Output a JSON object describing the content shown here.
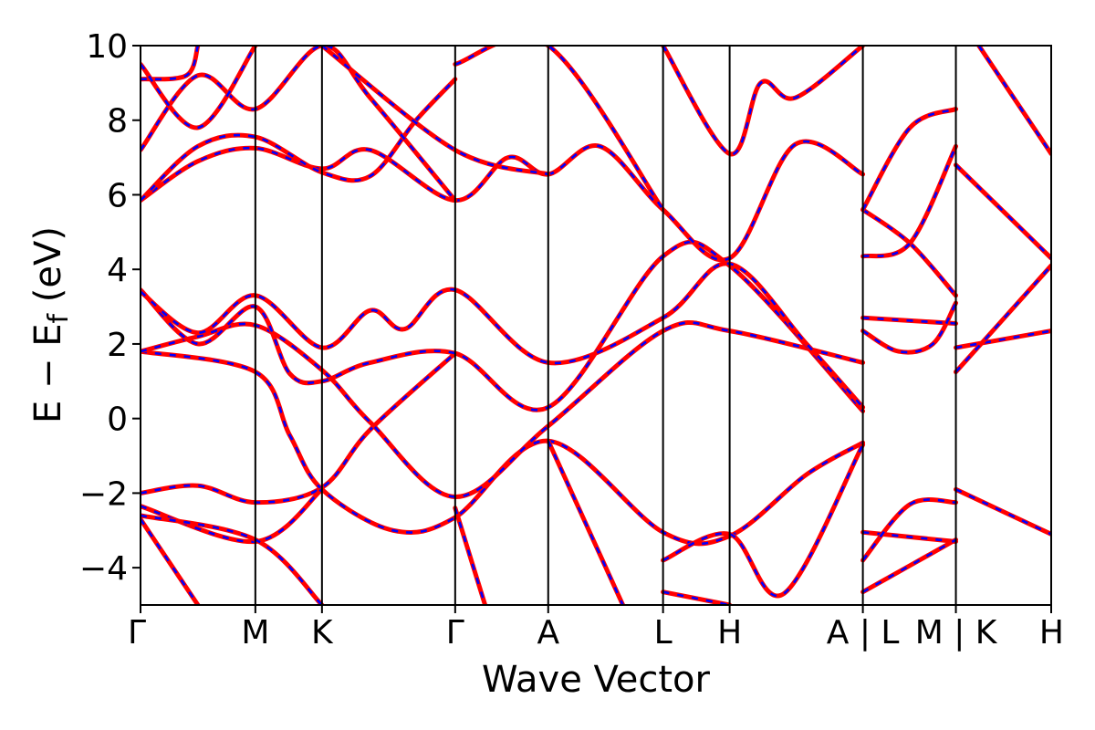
{
  "chart_data": {
    "type": "line",
    "xlabel": "Wave Vector",
    "ylabel_main": "E − E",
    "ylabel_sub": "f",
    "ylabel_unit": " (eV)",
    "ylim": [
      -5,
      10
    ],
    "yticks": [
      -4,
      -2,
      0,
      2,
      4,
      6,
      8,
      10
    ],
    "ytick_labels": [
      "−4",
      "−2",
      "0",
      "2",
      "4",
      "6",
      "8",
      "10"
    ],
    "xlim": [
      0,
      7.93
    ],
    "xticks": [
      {
        "x": 0.0,
        "label": "Γ"
      },
      {
        "x": 1.0,
        "label": "M"
      },
      {
        "x": 1.58,
        "label": "K"
      },
      {
        "x": 2.74,
        "label": "Γ"
      },
      {
        "x": 3.55,
        "label": "A"
      },
      {
        "x": 4.55,
        "label": "L"
      },
      {
        "x": 5.13,
        "label": "H"
      },
      {
        "x": 6.29,
        "label": "A | L"
      },
      {
        "x": 7.1,
        "label": "M | K"
      },
      {
        "x": 7.93,
        "label": "H"
      }
    ],
    "series": [
      {
        "style": "red-solid-blue-dashed",
        "values": [
          [
            0,
            -2.0
          ],
          [
            0.5,
            -1.8
          ],
          [
            1.0,
            -2.25
          ],
          [
            1.58,
            -1.85
          ],
          [
            2.0,
            -0.3
          ],
          [
            2.74,
            1.75
          ]
        ]
      },
      {
        "style": "red-solid-blue-dashed",
        "values": [
          [
            0,
            1.8
          ],
          [
            1.0,
            1.25
          ],
          [
            1.3,
            -0.45
          ],
          [
            1.58,
            -1.9
          ],
          [
            2.2,
            -3.0
          ],
          [
            2.74,
            -2.65
          ],
          [
            3.55,
            -0.6
          ],
          [
            4.55,
            -3.05
          ],
          [
            5.13,
            -3.15
          ],
          [
            5.8,
            -1.5
          ],
          [
            6.29,
            -0.65
          ]
        ]
      },
      {
        "style": "red-solid-blue-dashed",
        "values": [
          [
            0,
            1.8
          ],
          [
            0.5,
            2.2
          ],
          [
            1.0,
            2.5
          ],
          [
            1.58,
            1.3
          ],
          [
            2.0,
            -0.1
          ],
          [
            2.74,
            -2.1
          ],
          [
            3.55,
            -0.2
          ],
          [
            4.55,
            2.35
          ],
          [
            5.13,
            2.35
          ],
          [
            6.29,
            1.5
          ]
        ]
      },
      {
        "style": "red-solid-blue-dashed",
        "values": [
          [
            0,
            3.45
          ],
          [
            0.5,
            2.0
          ],
          [
            1.0,
            3.0
          ],
          [
            1.3,
            1.2
          ],
          [
            1.58,
            1.0
          ],
          [
            2.0,
            1.5
          ],
          [
            2.74,
            1.75
          ],
          [
            3.55,
            0.3
          ],
          [
            4.55,
            4.35
          ],
          [
            5.13,
            4.1
          ],
          [
            6.29,
            0.2
          ]
        ]
      },
      {
        "style": "red-solid-blue-dashed",
        "values": [
          [
            0,
            3.4
          ],
          [
            0.5,
            2.3
          ],
          [
            1.0,
            3.3
          ],
          [
            1.58,
            1.9
          ],
          [
            2.0,
            2.9
          ],
          [
            2.3,
            2.4
          ],
          [
            2.74,
            3.45
          ],
          [
            3.55,
            1.5
          ],
          [
            4.55,
            2.7
          ],
          [
            5.13,
            4.15
          ],
          [
            5.8,
            2.0
          ],
          [
            6.29,
            0.3
          ]
        ]
      },
      {
        "style": "red-solid-blue-dashed",
        "values": [
          [
            0,
            -2.35
          ],
          [
            1.0,
            -3.3
          ],
          [
            1.58,
            -1.9
          ]
        ]
      },
      {
        "style": "red-solid-blue-dashed",
        "values": [
          [
            0,
            -2.6
          ],
          [
            1.0,
            -3.25
          ],
          [
            1.58,
            -5.0
          ]
        ]
      },
      {
        "style": "red-solid-blue-dashed",
        "values": [
          [
            0,
            -2.7
          ],
          [
            0.5,
            -5.0
          ]
        ]
      },
      {
        "style": "red-solid-blue-dashed",
        "values": [
          [
            2.74,
            -2.4
          ],
          [
            3.0,
            -5.0
          ]
        ]
      },
      {
        "style": "red-solid-blue-dashed",
        "values": [
          [
            3.55,
            -0.6
          ],
          [
            4.2,
            -5.0
          ]
        ]
      },
      {
        "style": "red-solid-blue-dashed",
        "values": [
          [
            4.55,
            -3.8
          ],
          [
            5.13,
            -3.1
          ],
          [
            5.6,
            -4.7
          ],
          [
            6.29,
            -0.7
          ]
        ]
      },
      {
        "style": "red-solid-blue-dashed",
        "values": [
          [
            4.55,
            -4.65
          ],
          [
            5.13,
            -5.0
          ]
        ]
      },
      {
        "style": "red-solid-blue-dashed",
        "values": [
          [
            0,
            5.85
          ],
          [
            0.5,
            6.9
          ],
          [
            1.0,
            7.25
          ],
          [
            1.58,
            6.7
          ],
          [
            2.0,
            7.2
          ],
          [
            2.74,
            5.85
          ],
          [
            3.2,
            7.0
          ],
          [
            3.55,
            6.55
          ],
          [
            4.0,
            7.3
          ],
          [
            4.55,
            5.6
          ],
          [
            5.13,
            4.3
          ],
          [
            5.7,
            7.35
          ],
          [
            6.29,
            6.55
          ]
        ]
      },
      {
        "style": "red-solid-blue-dashed",
        "values": [
          [
            0,
            5.85
          ],
          [
            0.5,
            7.3
          ],
          [
            1.0,
            7.55
          ],
          [
            1.58,
            6.6
          ],
          [
            2.0,
            6.5
          ],
          [
            2.4,
            8.0
          ],
          [
            2.74,
            9.1
          ]
        ]
      },
      {
        "style": "red-solid-blue-dashed",
        "values": [
          [
            0,
            7.2
          ],
          [
            0.5,
            9.2
          ],
          [
            1.0,
            8.3
          ],
          [
            1.58,
            10.0
          ],
          [
            2.0,
            8.6
          ],
          [
            2.74,
            5.85
          ]
        ]
      },
      {
        "style": "red-solid-blue-dashed",
        "values": [
          [
            0,
            9.1
          ],
          [
            0.4,
            9.2
          ],
          [
            0.5,
            10.0
          ]
        ]
      },
      {
        "style": "red-solid-blue-dashed",
        "values": [
          [
            0,
            9.5
          ],
          [
            0.5,
            7.8
          ],
          [
            1.0,
            10.0
          ]
        ]
      },
      {
        "style": "red-solid-blue-dashed",
        "values": [
          [
            1.58,
            10.0
          ],
          [
            2.74,
            7.2
          ],
          [
            3.55,
            6.55
          ]
        ]
      },
      {
        "style": "red-solid-blue-dashed",
        "values": [
          [
            2.74,
            9.5
          ],
          [
            3.55,
            10.0
          ],
          [
            4.55,
            5.6
          ]
        ]
      },
      {
        "style": "red-solid-blue-dashed",
        "values": [
          [
            4.55,
            10.0
          ],
          [
            5.13,
            7.1
          ],
          [
            5.4,
            9.0
          ],
          [
            5.7,
            8.6
          ],
          [
            6.29,
            10.0
          ]
        ]
      },
      {
        "style": "red-solid-blue-dashed",
        "values": [
          [
            6.29,
            5.6
          ],
          [
            6.7,
            4.7
          ],
          [
            7.1,
            3.3
          ]
        ]
      },
      {
        "style": "red-solid-blue-dashed",
        "values": [
          [
            6.29,
            5.6
          ],
          [
            6.7,
            7.8
          ],
          [
            7.1,
            8.3
          ]
        ]
      },
      {
        "style": "red-solid-blue-dashed",
        "values": [
          [
            6.29,
            4.35
          ],
          [
            6.7,
            4.7
          ],
          [
            7.1,
            7.3
          ]
        ]
      },
      {
        "style": "red-solid-blue-dashed",
        "values": [
          [
            6.29,
            2.7
          ],
          [
            7.1,
            2.55
          ]
        ]
      },
      {
        "style": "red-solid-blue-dashed",
        "values": [
          [
            6.29,
            2.35
          ],
          [
            6.6,
            1.8
          ],
          [
            6.9,
            2.0
          ],
          [
            7.1,
            3.1
          ]
        ]
      },
      {
        "style": "red-solid-blue-dashed",
        "values": [
          [
            6.29,
            -3.05
          ],
          [
            7.1,
            -3.3
          ]
        ]
      },
      {
        "style": "red-solid-blue-dashed",
        "values": [
          [
            6.29,
            -3.8
          ],
          [
            6.7,
            -2.3
          ],
          [
            7.1,
            -2.25
          ]
        ]
      },
      {
        "style": "red-solid-blue-dashed",
        "values": [
          [
            6.29,
            -4.65
          ],
          [
            7.1,
            -3.25
          ]
        ]
      },
      {
        "style": "red-solid-blue-dashed",
        "values": [
          [
            7.1,
            1.9
          ],
          [
            7.93,
            2.35
          ]
        ]
      },
      {
        "style": "red-solid-blue-dashed",
        "values": [
          [
            7.1,
            1.25
          ],
          [
            7.93,
            4.1
          ]
        ]
      },
      {
        "style": "red-solid-blue-dashed",
        "values": [
          [
            7.1,
            6.8
          ],
          [
            7.93,
            4.3
          ]
        ]
      },
      {
        "style": "red-solid-blue-dashed",
        "values": [
          [
            7.1,
            -1.9
          ],
          [
            7.93,
            -3.1
          ]
        ]
      },
      {
        "style": "red-solid-blue-dashed",
        "values": [
          [
            7.3,
            10.0
          ],
          [
            7.93,
            7.1
          ]
        ]
      }
    ]
  }
}
